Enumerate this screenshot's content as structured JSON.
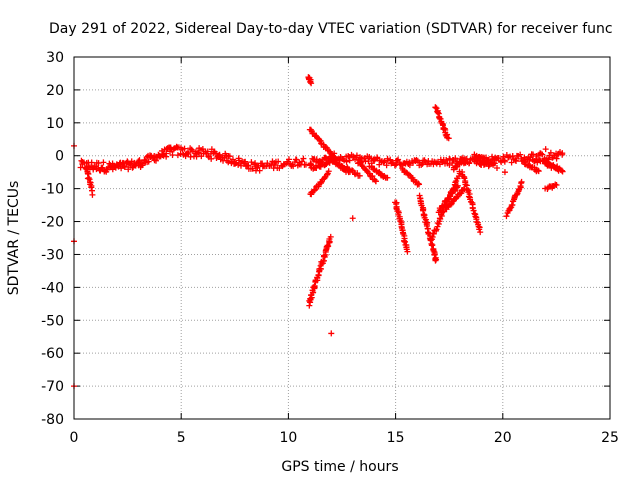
{
  "chart_data": {
    "type": "scatter",
    "title": "Day 291 of 2022, Sidereal Day-to-day VTEC variation (SDTVAR) for receiver func",
    "xlabel": "GPS time / hours",
    "ylabel": "SDTVAR / TECUs",
    "xlim": [
      0,
      25
    ],
    "ylim": [
      -80,
      30
    ],
    "xticks": [
      "0",
      "5",
      "10",
      "15",
      "20",
      "25"
    ],
    "yticks": [
      "30",
      "20",
      "10",
      "0",
      "-10",
      "-20",
      "-30",
      "-40",
      "-50",
      "-60",
      "-70",
      "-80"
    ],
    "grid": true,
    "marker": "plus",
    "color": "#ff0000",
    "segments": [
      {
        "name": "baseline-a",
        "x0": 0.3,
        "y0": -3,
        "x1": 1.8,
        "y1": -3.5,
        "n": 40,
        "width": 3
      },
      {
        "name": "baseline-b",
        "x0": 1.8,
        "y0": -3.5,
        "x1": 3.0,
        "y1": -2.5,
        "n": 35,
        "width": 2.5
      },
      {
        "name": "baseline-c",
        "x0": 3.0,
        "y0": -2.5,
        "x1": 4.5,
        "y1": 1.5,
        "n": 40,
        "width": 2.5
      },
      {
        "name": "baseline-d",
        "x0": 4.5,
        "y0": 1.5,
        "x1": 6.5,
        "y1": 0.5,
        "n": 45,
        "width": 3
      },
      {
        "name": "baseline-e",
        "x0": 6.5,
        "y0": 0.5,
        "x1": 8.5,
        "y1": -3.5,
        "n": 45,
        "width": 2.5
      },
      {
        "name": "baseline-f",
        "x0": 8.5,
        "y0": -3.5,
        "x1": 10.8,
        "y1": -1.5,
        "n": 45,
        "width": 2.5
      },
      {
        "name": "baseline-g",
        "x0": 11.0,
        "y0": -2.0,
        "x1": 12.0,
        "y1": -1.0,
        "n": 25,
        "width": 2
      },
      {
        "name": "baseline-h",
        "x0": 12.0,
        "y0": -0.5,
        "x1": 15.0,
        "y1": -2.0,
        "n": 55,
        "width": 2.5
      },
      {
        "name": "baseline-i",
        "x0": 15.0,
        "y0": -2.0,
        "x1": 17.5,
        "y1": -2.0,
        "n": 45,
        "width": 1.8
      },
      {
        "name": "baseline-j",
        "x0": 17.5,
        "y0": -1.5,
        "x1": 20.0,
        "y1": -1.0,
        "n": 45,
        "width": 2
      },
      {
        "name": "baseline-k",
        "x0": 20.0,
        "y0": -1.0,
        "x1": 22.8,
        "y1": 0.0,
        "n": 50,
        "width": 2.5
      },
      {
        "name": "dip-early",
        "x0": 0.6,
        "y0": -4,
        "x1": 0.85,
        "y1": -11,
        "n": 15,
        "width": 2
      },
      {
        "name": "spike-top-11",
        "x0": 10.95,
        "y0": 24,
        "x1": 11.05,
        "y1": 22,
        "n": 8,
        "width": 0.8
      },
      {
        "name": "desc-11a",
        "x0": 11.0,
        "y0": 8,
        "x1": 12.2,
        "y1": -1,
        "n": 30,
        "width": 0.8
      },
      {
        "name": "desc-11b",
        "x0": 11.1,
        "y0": -4,
        "x1": 11.9,
        "y1": -2,
        "n": 15,
        "width": 0.8
      },
      {
        "name": "desc-11c",
        "x0": 11.0,
        "y0": -12,
        "x1": 11.9,
        "y1": -5,
        "n": 22,
        "width": 0.8
      },
      {
        "name": "big-dip-11",
        "x0": 10.95,
        "y0": -45,
        "x1": 11.95,
        "y1": -25,
        "n": 55,
        "width": 1.3
      },
      {
        "name": "desc-12a",
        "x0": 12.0,
        "y0": -1,
        "x1": 12.8,
        "y1": -5,
        "n": 18,
        "width": 0.8
      },
      {
        "name": "desc-12b",
        "x0": 12.2,
        "y0": -2,
        "x1": 13.3,
        "y1": -6,
        "n": 20,
        "width": 0.8
      },
      {
        "name": "desc-13a",
        "x0": 13.2,
        "y0": -1,
        "x1": 14.1,
        "y1": -8,
        "n": 20,
        "width": 0.8
      },
      {
        "name": "desc-14a",
        "x0": 13.8,
        "y0": -3,
        "x1": 14.6,
        "y1": -7,
        "n": 18,
        "width": 0.8
      },
      {
        "name": "desc-15a",
        "x0": 15.3,
        "y0": -4,
        "x1": 16.1,
        "y1": -9,
        "n": 18,
        "width": 0.8
      },
      {
        "name": "plunge-15",
        "x0": 15.0,
        "y0": -14,
        "x1": 15.55,
        "y1": -29,
        "n": 35,
        "width": 0.8
      },
      {
        "name": "plunge-16-17",
        "x0": 16.1,
        "y0": -12,
        "x1": 16.9,
        "y1": -32,
        "n": 45,
        "width": 0.9
      },
      {
        "name": "steep-16-17",
        "x0": 16.85,
        "y0": 15,
        "x1": 17.45,
        "y1": 5,
        "n": 25,
        "width": 0.7
      },
      {
        "name": "rise-17a",
        "x0": 16.7,
        "y0": -25,
        "x1": 18.0,
        "y1": -5,
        "n": 40,
        "width": 1
      },
      {
        "name": "rise-17b",
        "x0": 17.0,
        "y0": -17,
        "x1": 17.9,
        "y1": -9,
        "n": 25,
        "width": 0.9
      },
      {
        "name": "rise-17c",
        "x0": 17.4,
        "y0": -16,
        "x1": 18.2,
        "y1": -10,
        "n": 22,
        "width": 0.8
      },
      {
        "name": "cluster-18a",
        "x0": 17.7,
        "y0": -4,
        "x1": 18.3,
        "y1": -1,
        "n": 15,
        "width": 1
      },
      {
        "name": "drop-18-19",
        "x0": 18.1,
        "y0": -5,
        "x1": 18.95,
        "y1": -23,
        "n": 35,
        "width": 0.8
      },
      {
        "name": "cluster-19",
        "x0": 18.8,
        "y0": -2,
        "x1": 19.7,
        "y1": -3,
        "n": 20,
        "width": 1.8
      },
      {
        "name": "cluster-19b",
        "x0": 18.7,
        "y0": 0,
        "x1": 19.2,
        "y1": -1,
        "n": 10,
        "width": 1
      },
      {
        "name": "rise-20",
        "x0": 20.2,
        "y0": -18,
        "x1": 20.9,
        "y1": -8,
        "n": 25,
        "width": 1
      },
      {
        "name": "desc-21a",
        "x0": 21.0,
        "y0": -2,
        "x1": 21.7,
        "y1": -5,
        "n": 15,
        "width": 0.9
      },
      {
        "name": "desc-21b",
        "x0": 21.4,
        "y0": -1,
        "x1": 22.6,
        "y1": -4,
        "n": 20,
        "width": 1.2
      },
      {
        "name": "tail-22",
        "x0": 22.0,
        "y0": -2,
        "x1": 22.8,
        "y1": -5,
        "n": 15,
        "width": 1
      },
      {
        "name": "dip-22",
        "x0": 22.0,
        "y0": -10,
        "x1": 22.5,
        "y1": -9,
        "n": 10,
        "width": 0.8
      }
    ],
    "isolated_points": [
      {
        "x": 0.0,
        "y": 3
      },
      {
        "x": 0.0,
        "y": -26
      },
      {
        "x": 0.0,
        "y": -70
      },
      {
        "x": 12.0,
        "y": -54
      },
      {
        "x": 13.0,
        "y": -19
      },
      {
        "x": 20.1,
        "y": -5
      },
      {
        "x": 22.0,
        "y": 2
      }
    ]
  }
}
